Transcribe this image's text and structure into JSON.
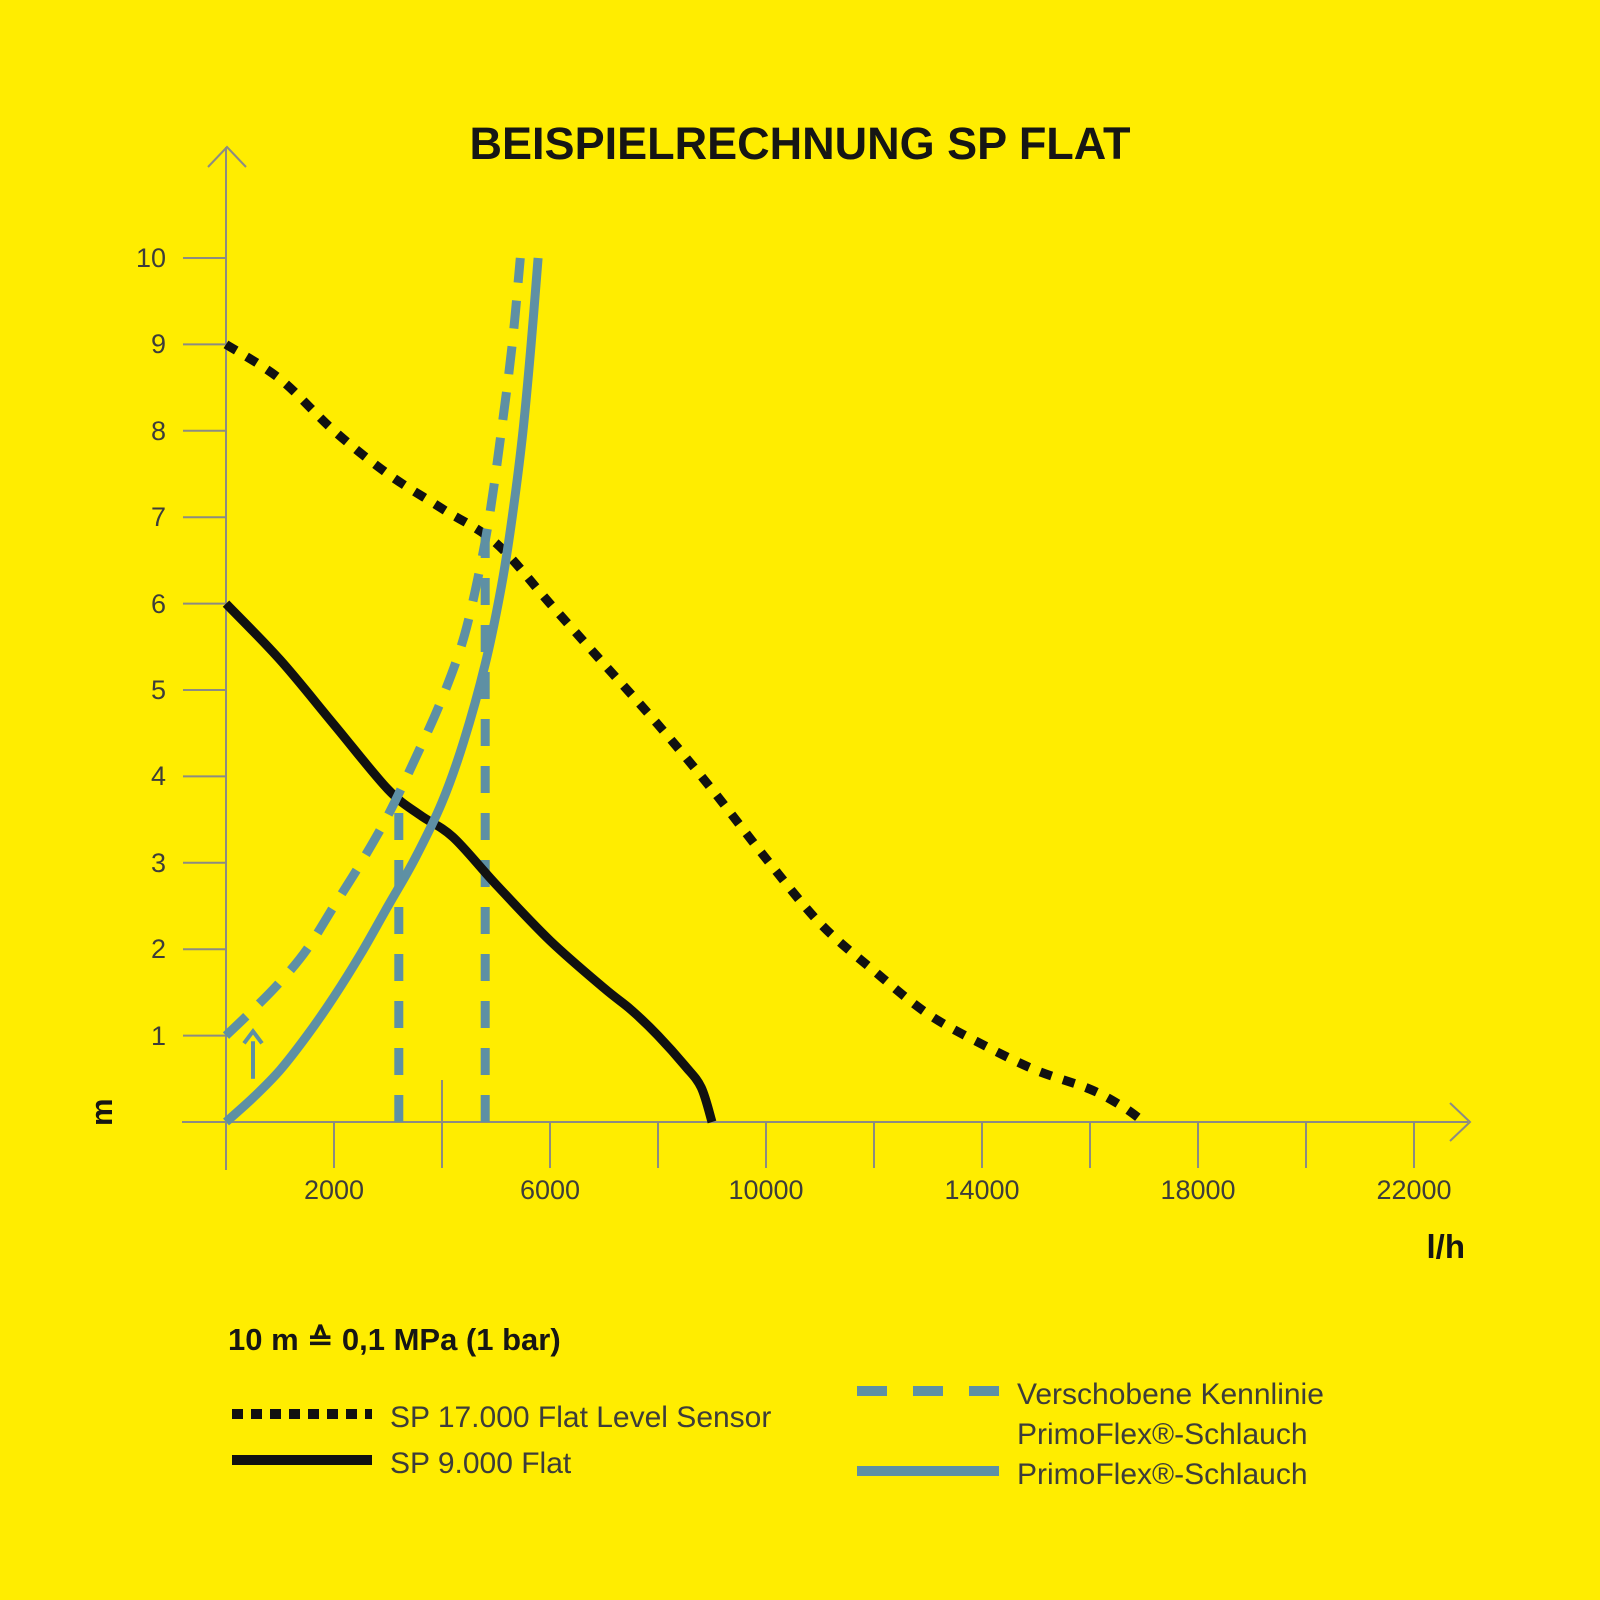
{
  "title": "BEISPIELRECHNUNG SP FLAT",
  "note": {
    "text": "10 m ≙ 0,1 MPa (1 bar)"
  },
  "axes": {
    "y_unit": "m",
    "x_unit": "l/h",
    "y_ticks": [
      1,
      2,
      3,
      4,
      5,
      6,
      7,
      8,
      9,
      10
    ],
    "x_ticks": [
      2000,
      4000,
      6000,
      8000,
      10000,
      12000,
      14000,
      16000,
      18000,
      20000,
      22000
    ],
    "x_labeled_ticks": [
      2000,
      6000,
      10000,
      14000,
      18000,
      22000
    ],
    "x_range": [
      0,
      22000
    ],
    "y_range": [
      0,
      10
    ],
    "grid": "off"
  },
  "colors": {
    "background": "#FFED00",
    "black_curve": "#111110",
    "blue_curve": "#5E90A4",
    "axis_gray": "#8C8C82",
    "tick_label_gray": "#3D3D3A",
    "text_black": "#161614"
  },
  "legend": {
    "left": [
      {
        "label": "SP 17.000 Flat Level Sensor",
        "style": "dotted-black"
      },
      {
        "label": "SP 9.000 Flat",
        "style": "solid-black"
      }
    ],
    "right": [
      {
        "label_line1": "Verschobene Kennlinie",
        "label_line2": "PrimoFlex®-Schlauch",
        "style": "dashed-blue"
      },
      {
        "label_line1": "PrimoFlex®-Schlauch",
        "label_line2": "",
        "style": "solid-blue"
      }
    ]
  },
  "chart_data": {
    "type": "line",
    "title": "BEISPIELRECHNUNG SP FLAT",
    "xlabel": "l/h",
    "ylabel": "m",
    "xlim": [
      0,
      23000
    ],
    "ylim": [
      0,
      10
    ],
    "legend_position": "bottom",
    "series": [
      {
        "name": "SP 17.000 Flat Level Sensor",
        "style": "dotted",
        "color": "#111110",
        "points": [
          [
            0,
            9.0
          ],
          [
            1000,
            8.6
          ],
          [
            2000,
            8.0
          ],
          [
            3000,
            7.5
          ],
          [
            4000,
            7.1
          ],
          [
            5000,
            6.7
          ],
          [
            6000,
            6.0
          ],
          [
            7000,
            5.3
          ],
          [
            8000,
            4.6
          ],
          [
            9000,
            3.85
          ],
          [
            10000,
            3.05
          ],
          [
            11000,
            2.3
          ],
          [
            12000,
            1.75
          ],
          [
            13000,
            1.25
          ],
          [
            14000,
            0.9
          ],
          [
            15000,
            0.6
          ],
          [
            16000,
            0.38
          ],
          [
            16600,
            0.18
          ],
          [
            17000,
            0.0
          ]
        ]
      },
      {
        "name": "SP 9.000 Flat",
        "style": "solid",
        "color": "#111110",
        "points": [
          [
            0,
            6.0
          ],
          [
            1000,
            5.35
          ],
          [
            2000,
            4.6
          ],
          [
            3000,
            3.85
          ],
          [
            3600,
            3.55
          ],
          [
            4200,
            3.3
          ],
          [
            5000,
            2.75
          ],
          [
            6000,
            2.1
          ],
          [
            7000,
            1.55
          ],
          [
            7500,
            1.3
          ],
          [
            8000,
            1.0
          ],
          [
            8500,
            0.65
          ],
          [
            8800,
            0.4
          ],
          [
            9000,
            0.0
          ]
        ]
      },
      {
        "name": "Verschobene Kennlinie PrimoFlex®-Schlauch",
        "style": "dashed",
        "color": "#5E90A4",
        "points": [
          [
            0,
            1.0
          ],
          [
            500,
            1.3
          ],
          [
            1000,
            1.62
          ],
          [
            1500,
            2.0
          ],
          [
            2000,
            2.5
          ],
          [
            2500,
            3.0
          ],
          [
            3000,
            3.55
          ],
          [
            3500,
            4.2
          ],
          [
            4000,
            4.9
          ],
          [
            4400,
            5.6
          ],
          [
            4700,
            6.4
          ],
          [
            4900,
            7.1
          ],
          [
            5100,
            8.0
          ],
          [
            5300,
            9.0
          ],
          [
            5450,
            10.0
          ]
        ]
      },
      {
        "name": "PrimoFlex®-Schlauch",
        "style": "solid",
        "color": "#5E90A4",
        "points": [
          [
            0,
            0.0
          ],
          [
            500,
            0.28
          ],
          [
            1000,
            0.6
          ],
          [
            1500,
            1.0
          ],
          [
            2000,
            1.45
          ],
          [
            2500,
            1.95
          ],
          [
            3000,
            2.5
          ],
          [
            3500,
            3.05
          ],
          [
            4000,
            3.7
          ],
          [
            4400,
            4.4
          ],
          [
            4800,
            5.3
          ],
          [
            5100,
            6.2
          ],
          [
            5300,
            7.0
          ],
          [
            5500,
            8.0
          ],
          [
            5650,
            9.0
          ],
          [
            5780,
            10.0
          ]
        ]
      }
    ],
    "annotations": {
      "vertical_dashed_markers": [
        {
          "x": 3200,
          "y_top": 3.6,
          "meaning": "operating point SP 9.000 Flat on shifted curve"
        },
        {
          "x": 4800,
          "y_top": 6.8,
          "meaning": "operating point SP 17.000 Flat Level Sensor on shifted curve"
        }
      ],
      "extended_axis_tick_x": 4000,
      "shift_arrow": {
        "x": 500,
        "y_from": 0.5,
        "y_to": 1.05,
        "direction": "up",
        "color": "#5E90A4"
      }
    }
  }
}
